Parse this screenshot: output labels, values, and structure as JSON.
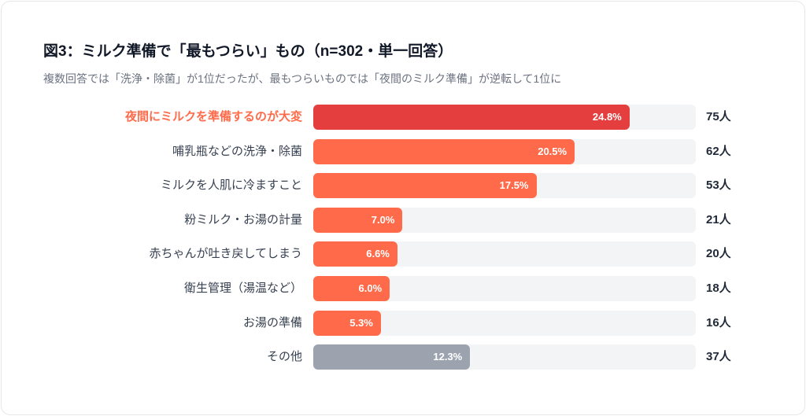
{
  "chart_data": {
    "type": "bar",
    "orientation": "horizontal",
    "title": "図3：ミルク準備で「最もつらい」もの（n=302・単一回答）",
    "subtitle": "複数回答では「洗浄・除菌」が1位だったが、最もつらいものでは「夜間のミルク準備」が逆転して1位に",
    "xlim": [
      0,
      30
    ],
    "grid": false,
    "categories": [
      "夜間にミルクを準備するのが大変",
      "哺乳瓶などの洗浄・除菌",
      "ミルクを人肌に冷ますこと",
      "粉ミルク・お湯の計量",
      "赤ちゃんが吐き戻してしまう",
      "衛生管理（湯温など）",
      "お湯の準備",
      "その他"
    ],
    "values": [
      24.8,
      20.5,
      17.5,
      7.0,
      6.6,
      6.0,
      5.3,
      12.3
    ],
    "value_labels": [
      "24.8%",
      "20.5%",
      "17.5%",
      "7.0%",
      "6.6%",
      "6.0%",
      "5.3%",
      "12.3%"
    ],
    "counts": [
      "75人",
      "62人",
      "53人",
      "21人",
      "20人",
      "18人",
      "16人",
      "37人"
    ],
    "highlight_index": 0,
    "colors": {
      "highlight_bar": "#e53e3e",
      "highlight_label": "#ff6b4a",
      "bar": "#ff6b4a",
      "other": "#9ca3af",
      "track": "#f3f4f6"
    }
  }
}
